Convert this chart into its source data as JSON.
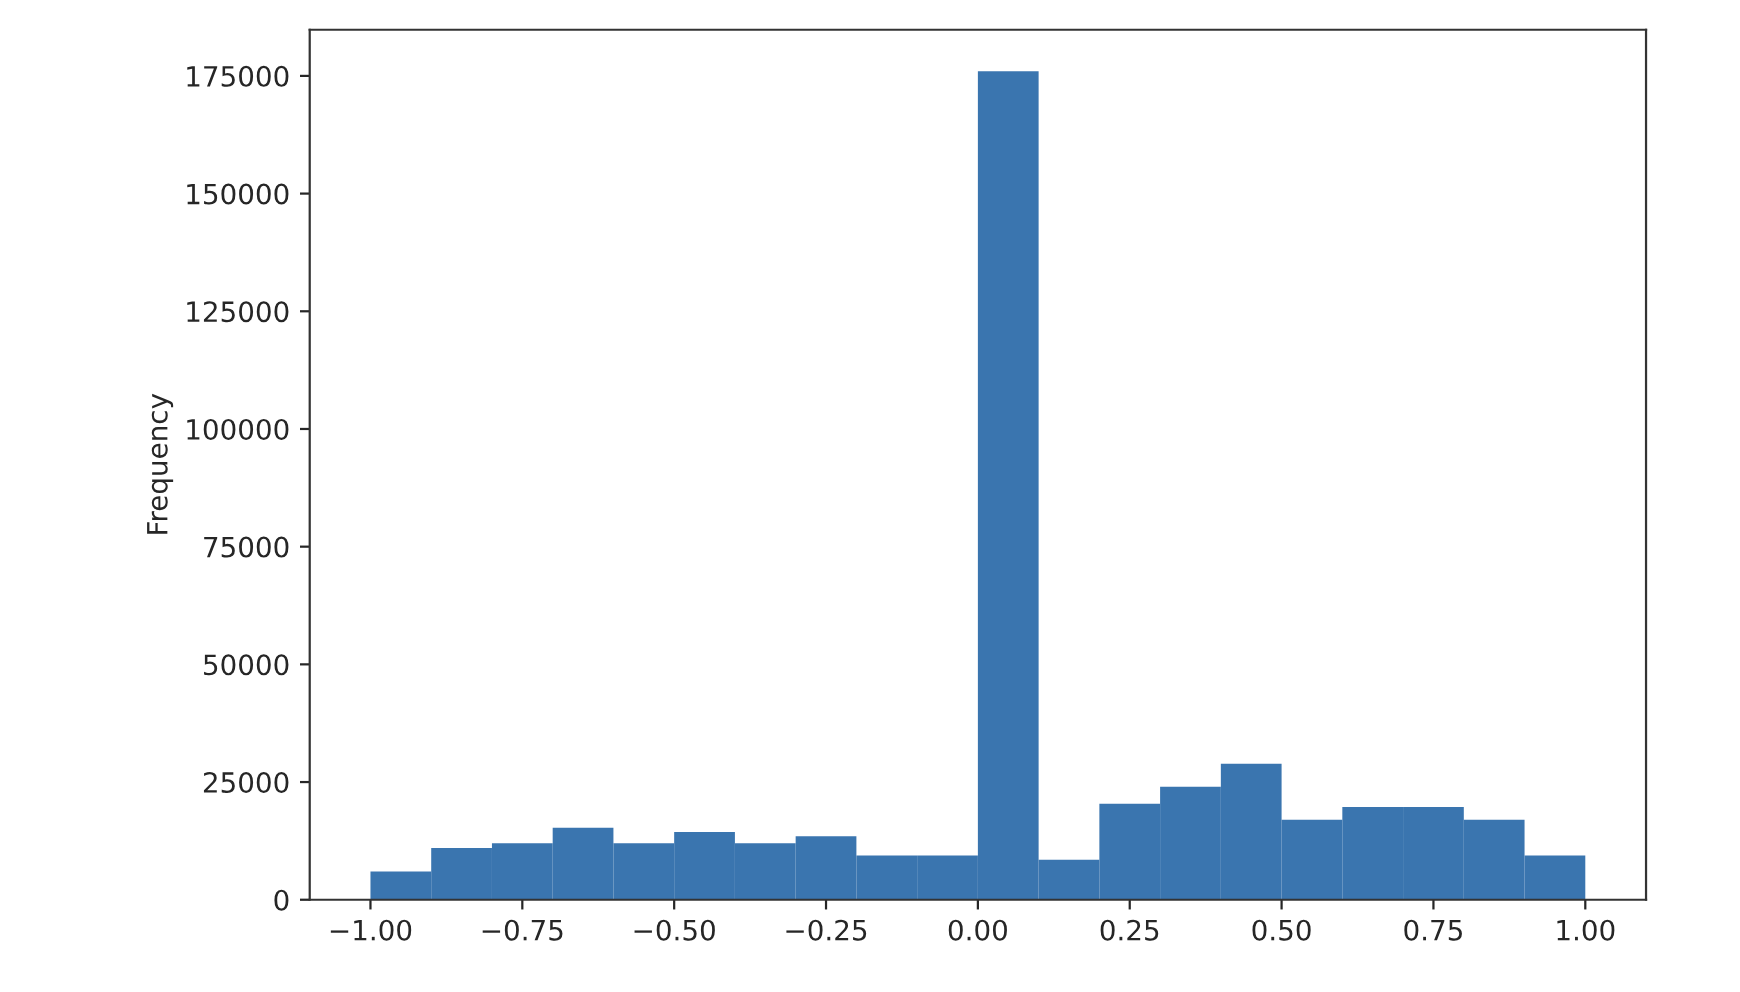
{
  "chart_data": {
    "type": "histogram",
    "ylabel": "Frequency",
    "bins": [
      -1.0,
      -0.9,
      -0.8,
      -0.7,
      -0.6,
      -0.5,
      -0.4,
      -0.3,
      -0.2,
      -0.1,
      0.0,
      0.1,
      0.2,
      0.3,
      0.4,
      0.5,
      0.6,
      0.7,
      0.8,
      0.9,
      1.0
    ],
    "values": [
      6000,
      11000,
      12000,
      15300,
      12000,
      14400,
      12000,
      13500,
      9400,
      9400,
      176000,
      8500,
      20400,
      24000,
      28900,
      17000,
      19700,
      19700,
      17000,
      9400
    ],
    "color": "#3a75af",
    "xlim": [
      -1.1,
      1.1
    ],
    "xticks": [
      {
        "value": -1.0,
        "label": "−1.00"
      },
      {
        "value": -0.75,
        "label": "−0.75"
      },
      {
        "value": -0.5,
        "label": "−0.50"
      },
      {
        "value": -0.25,
        "label": "−0.25"
      },
      {
        "value": 0.0,
        "label": "0.00"
      },
      {
        "value": 0.25,
        "label": "0.25"
      },
      {
        "value": 0.5,
        "label": "0.50"
      },
      {
        "value": 0.75,
        "label": "0.75"
      },
      {
        "value": 1.0,
        "label": "1.00"
      }
    ],
    "ylim": [
      0,
      184800
    ],
    "yticks": [
      0,
      25000,
      50000,
      75000,
      100000,
      125000,
      150000,
      175000
    ],
    "grid": false
  }
}
